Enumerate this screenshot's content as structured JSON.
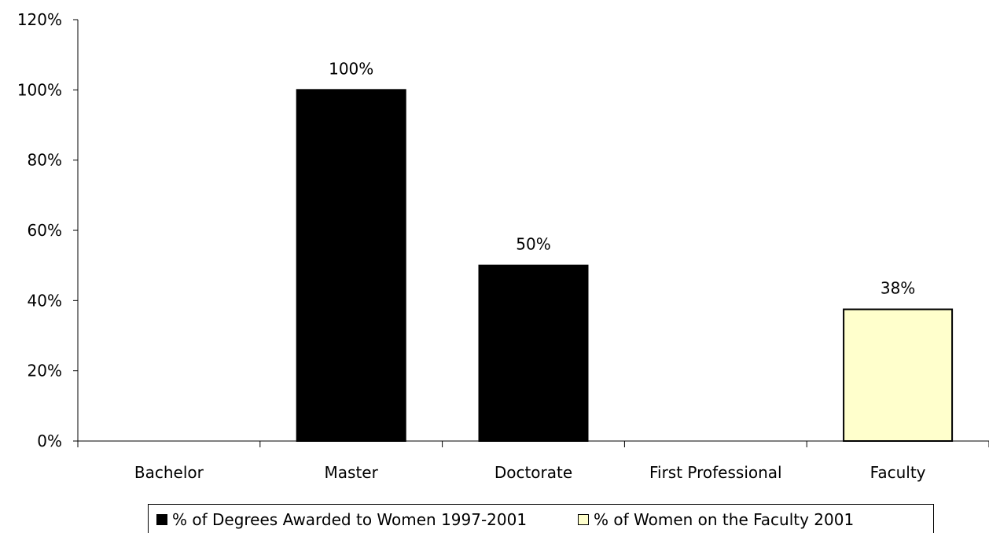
{
  "chart_data": {
    "type": "bar",
    "categories": [
      "Bachelor",
      "Master",
      "Doctorate",
      "First Professional",
      "Faculty"
    ],
    "series": [
      {
        "name": "% of Degrees Awarded to Women 1997-2001",
        "color": "#000000",
        "values": [
          0,
          100,
          50,
          0,
          null
        ],
        "labels": [
          "",
          "100%",
          "50%",
          "",
          ""
        ]
      },
      {
        "name": "% of Women on the Faculty 2001",
        "color": "#ffffcc",
        "values": [
          null,
          null,
          null,
          null,
          37.5
        ],
        "labels": [
          "",
          "",
          "",
          "",
          "38%"
        ]
      }
    ],
    "ylim": [
      0,
      120
    ],
    "yticks": [
      0,
      20,
      40,
      60,
      80,
      100,
      120
    ],
    "ytick_labels": [
      "0%",
      "20%",
      "40%",
      "60%",
      "80%",
      "100%",
      "120%"
    ],
    "grid": false,
    "legend_position": "bottom"
  }
}
